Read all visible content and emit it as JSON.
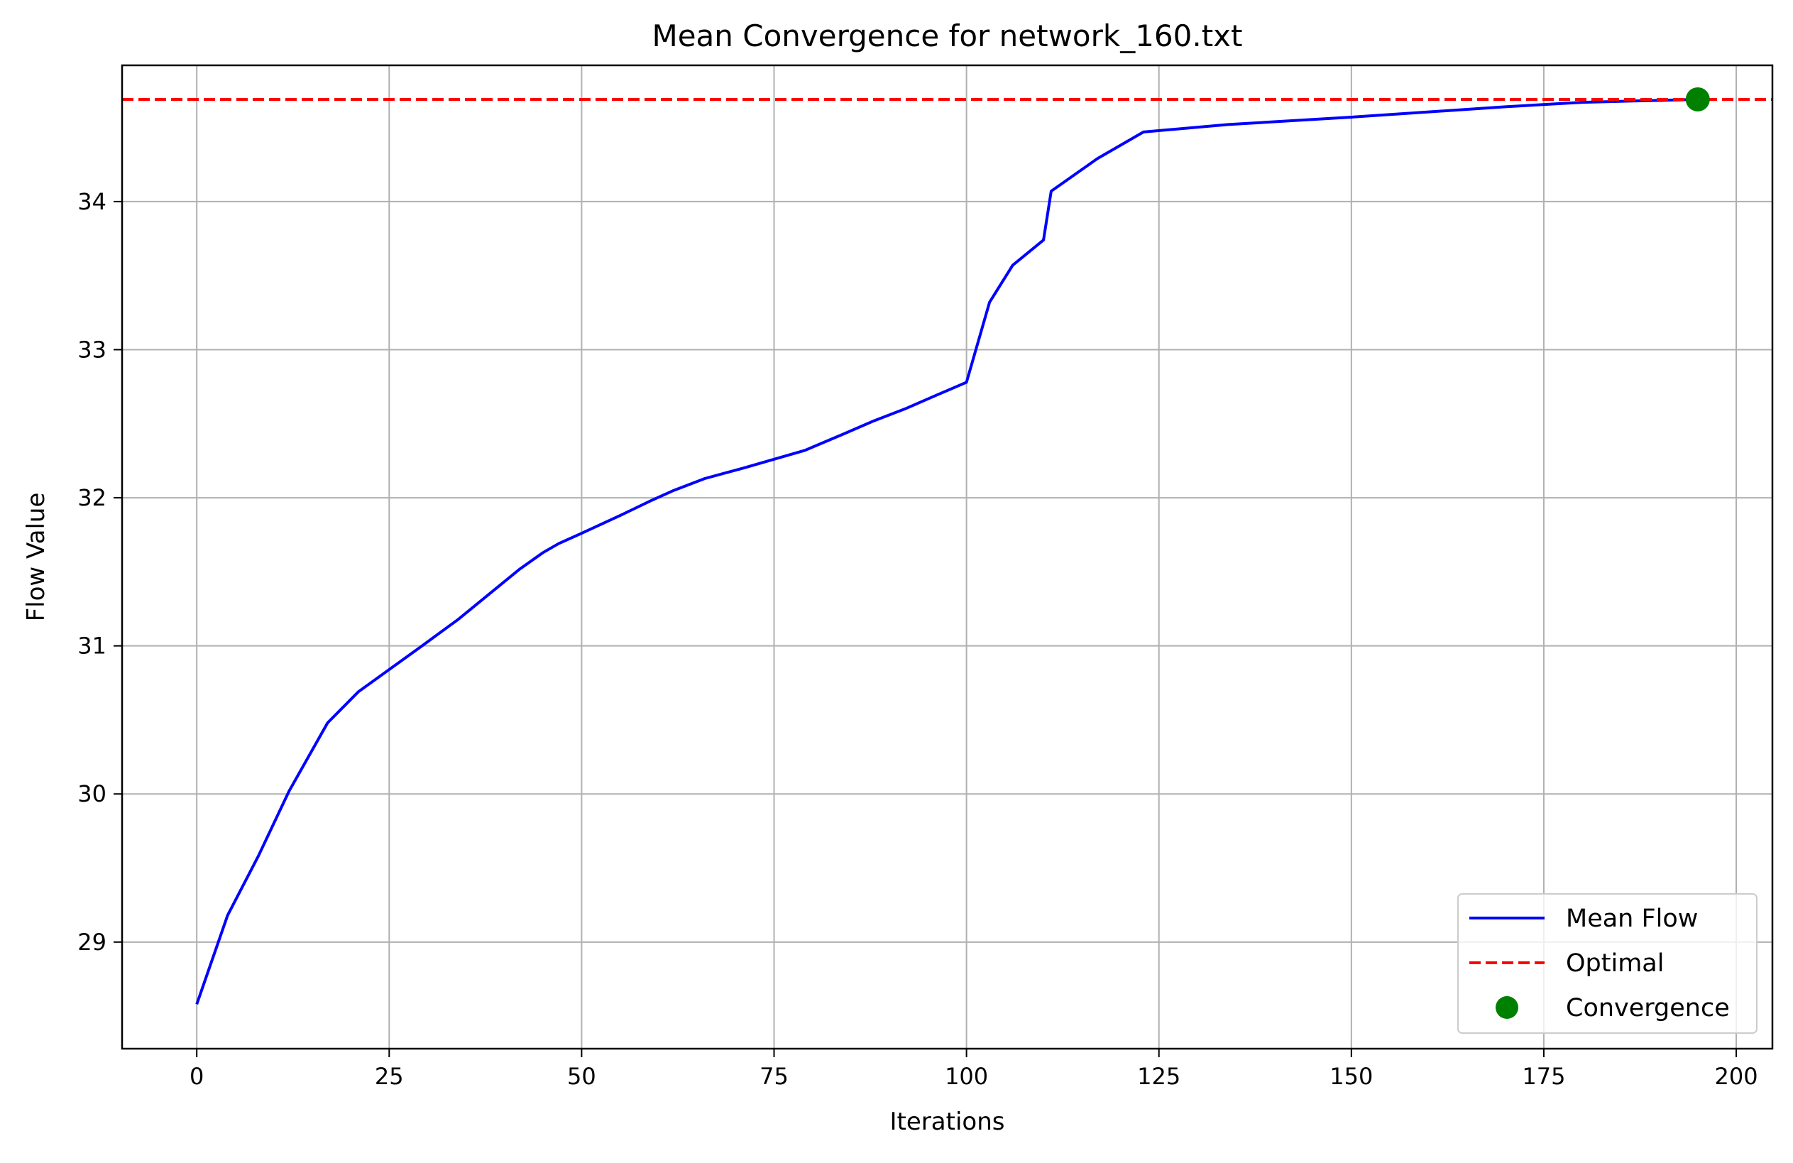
{
  "chart_data": {
    "type": "line",
    "title": "Mean Convergence for network_160.txt",
    "xlabel": "Iterations",
    "ylabel": "Flow Value",
    "xlim": [
      -9.7,
      204.7
    ],
    "ylim": [
      28.28,
      34.92
    ],
    "xticks": [
      0,
      25,
      50,
      75,
      100,
      125,
      150,
      175,
      200
    ],
    "yticks": [
      29,
      30,
      31,
      32,
      33,
      34
    ],
    "grid": true,
    "legend_position": "lower-right",
    "series": [
      {
        "name": "Mean Flow",
        "color": "#0000ff",
        "style": "solid",
        "x": [
          0,
          4,
          8,
          12,
          17,
          21,
          25,
          29,
          34,
          38,
          42,
          45,
          47,
          50,
          55,
          59,
          62,
          66,
          71,
          75,
          79,
          84,
          88,
          92,
          96,
          100,
          103,
          106,
          110,
          111,
          114,
          117,
          120,
          123,
          134,
          150,
          170,
          180,
          195
        ],
        "y": [
          28.58,
          29.18,
          29.58,
          30.02,
          30.48,
          30.69,
          30.84,
          30.99,
          31.18,
          31.35,
          31.52,
          31.63,
          31.69,
          31.76,
          31.88,
          31.98,
          32.05,
          32.13,
          32.2,
          32.26,
          32.32,
          32.43,
          32.52,
          32.6,
          32.69,
          32.78,
          33.32,
          33.57,
          33.74,
          34.07,
          34.18,
          34.29,
          34.38,
          34.47,
          34.52,
          34.57,
          34.64,
          34.67,
          34.69
        ]
      },
      {
        "name": "Optimal",
        "color": "#ff0000",
        "style": "dashed",
        "y_constant": 34.69
      },
      {
        "name": "Convergence",
        "color": "#008000",
        "style": "marker",
        "x": [
          195
        ],
        "y": [
          34.69
        ]
      }
    ]
  }
}
